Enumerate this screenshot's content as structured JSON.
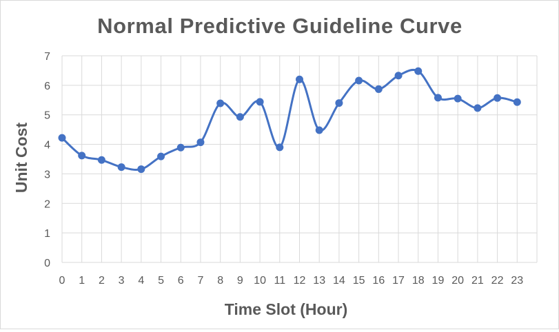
{
  "chart_data": {
    "type": "line",
    "title": "Normal Predictive Guideline Curve",
    "xlabel": "Time Slot (Hour)",
    "ylabel": "Unit Cost",
    "categories": [
      "0",
      "1",
      "2",
      "3",
      "4",
      "5",
      "6",
      "7",
      "8",
      "9",
      "10",
      "11",
      "12",
      "13",
      "14",
      "15",
      "16",
      "17",
      "18",
      "19",
      "20",
      "21",
      "22",
      "23"
    ],
    "series": [
      {
        "values": [
          4.22,
          3.62,
          3.47,
          3.23,
          3.16,
          3.59,
          3.89,
          4.07,
          5.39,
          4.93,
          5.44,
          3.9,
          6.2,
          4.48,
          5.4,
          6.16,
          5.87,
          6.33,
          6.48,
          5.58,
          5.55,
          5.23,
          5.57,
          5.43
        ],
        "color": "#4472c4",
        "smooth": true,
        "markers": true
      }
    ],
    "ylim": [
      0,
      7
    ],
    "yticks": [
      0,
      1,
      2,
      3,
      4,
      5,
      6,
      7
    ],
    "grid": true,
    "legend": "none"
  }
}
